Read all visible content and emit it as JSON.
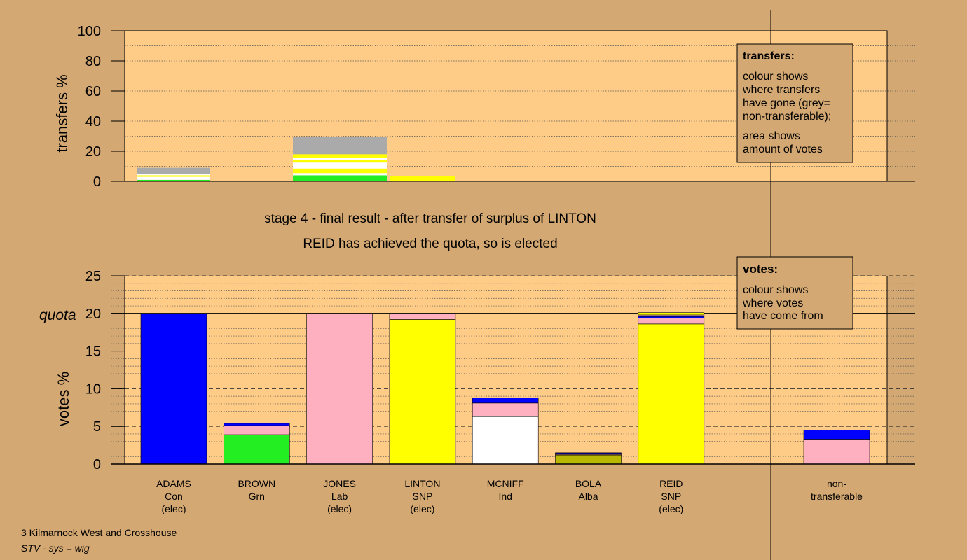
{
  "colors": {
    "background": "#d4a872",
    "plot_bg": "#ffcc88",
    "Con": "#0000ff",
    "Grn": "#22ee22",
    "Lab": "#ffb0c0",
    "SNP": "#ffff00",
    "Ind": "#ffffff",
    "Alba": "#b8b800",
    "non_transferable": "#aaaaaa"
  },
  "headline": {
    "line1": "stage 4 - final result - after transfer of surplus of LINTON",
    "line2": "REID has achieved the quota, so is elected"
  },
  "transfers_legend": {
    "title": "transfers:",
    "text1": [
      "colour shows",
      "where transfers",
      "have gone (grey=",
      "non-transferable);"
    ],
    "text2": [
      "area shows",
      "amount of votes"
    ]
  },
  "votes_legend": {
    "title": "votes:",
    "text1": [
      "colour shows",
      "where votes",
      "have come from"
    ]
  },
  "footer": {
    "ward": "3 Kilmarnock West and Crosshouse",
    "system": "STV - sys = wig"
  },
  "chart_data": [
    {
      "type": "bar",
      "name": "transfers",
      "ylabel": "transfers %",
      "ylim": [
        0,
        100
      ],
      "yticks": [
        0,
        20,
        40,
        60,
        80,
        100
      ],
      "stacked": true,
      "bars": [
        {
          "candidate": "ADAMS",
          "width_votes": 20,
          "segments": [
            {
              "color": "#22ee22",
              "value": 1.0
            },
            {
              "color": "#ffffff",
              "value": 2.0
            },
            {
              "color": "#ffff00",
              "value": 1.0
            },
            {
              "color": "#ffffff",
              "value": 1.0
            },
            {
              "color": "#aaaaaa",
              "value": 4.0
            }
          ]
        },
        {
          "candidate": "JONES",
          "width_votes": 20,
          "segments": [
            {
              "color": "#22ee22",
              "value": 4.0
            },
            {
              "color": "#ffffff",
              "value": 1.5
            },
            {
              "color": "#ffff00",
              "value": 3.0
            },
            {
              "color": "#ffffff",
              "value": 4.0
            },
            {
              "color": "#ffff00",
              "value": 1.5
            },
            {
              "color": "#ffffff",
              "value": 1.5
            },
            {
              "color": "#ffff00",
              "value": 2.5
            },
            {
              "color": "#aaaaaa",
              "value": 11.5
            }
          ]
        },
        {
          "candidate": "LINTON",
          "width_votes": 20,
          "segments": [
            {
              "color": "#ffff00",
              "value": 3.5
            }
          ]
        }
      ]
    },
    {
      "type": "bar",
      "name": "votes",
      "ylabel": "votes %",
      "quota_label": "quota",
      "quota": 20,
      "ylim": [
        0,
        25
      ],
      "yticks": [
        0,
        5,
        10,
        15,
        20,
        25
      ],
      "stacked": true,
      "candidates": [
        {
          "name": "ADAMS",
          "party": "Con",
          "status": "(elec)",
          "segments": [
            {
              "color": "#0000ff",
              "value": 20.0
            }
          ]
        },
        {
          "name": "BROWN",
          "party": "Grn",
          "status": "",
          "segments": [
            {
              "color": "#22ee22",
              "value": 3.9
            },
            {
              "color": "#ffb0c0",
              "value": 1.2
            },
            {
              "color": "#0000ff",
              "value": 0.3
            }
          ]
        },
        {
          "name": "JONES",
          "party": "Lab",
          "status": "(elec)",
          "segments": [
            {
              "color": "#ffb0c0",
              "value": 20.0
            }
          ]
        },
        {
          "name": "LINTON",
          "party": "SNP",
          "status": "(elec)",
          "segments": [
            {
              "color": "#ffff00",
              "value": 19.2
            },
            {
              "color": "#ffb0c0",
              "value": 0.8
            }
          ]
        },
        {
          "name": "MCNIFF",
          "party": "Ind",
          "status": "",
          "segments": [
            {
              "color": "#ffffff",
              "value": 6.3
            },
            {
              "color": "#ffb0c0",
              "value": 1.8
            },
            {
              "color": "#0000ff",
              "value": 0.7
            }
          ]
        },
        {
          "name": "BOLA",
          "party": "Alba",
          "status": "",
          "segments": [
            {
              "color": "#b8b800",
              "value": 1.2
            },
            {
              "color": "#ffb0c0",
              "value": 0.1
            },
            {
              "color": "#ffff00",
              "value": 0.1
            },
            {
              "color": "#0000ff",
              "value": 0.1
            }
          ]
        },
        {
          "name": "REID",
          "party": "SNP",
          "status": "(elec)",
          "segments": [
            {
              "color": "#ffff00",
              "value": 18.6
            },
            {
              "color": "#ffb0c0",
              "value": 0.8
            },
            {
              "color": "#0000ff",
              "value": 0.2
            },
            {
              "color": "#ffb0c0",
              "value": 0.2
            },
            {
              "color": "#ffff00",
              "value": 0.3
            }
          ]
        },
        {
          "name": "non-",
          "party": "transferable",
          "status": "",
          "segments": [
            {
              "color": "#ffb0c0",
              "value": 3.3
            },
            {
              "color": "#0000ff",
              "value": 1.2
            }
          ]
        }
      ]
    }
  ]
}
